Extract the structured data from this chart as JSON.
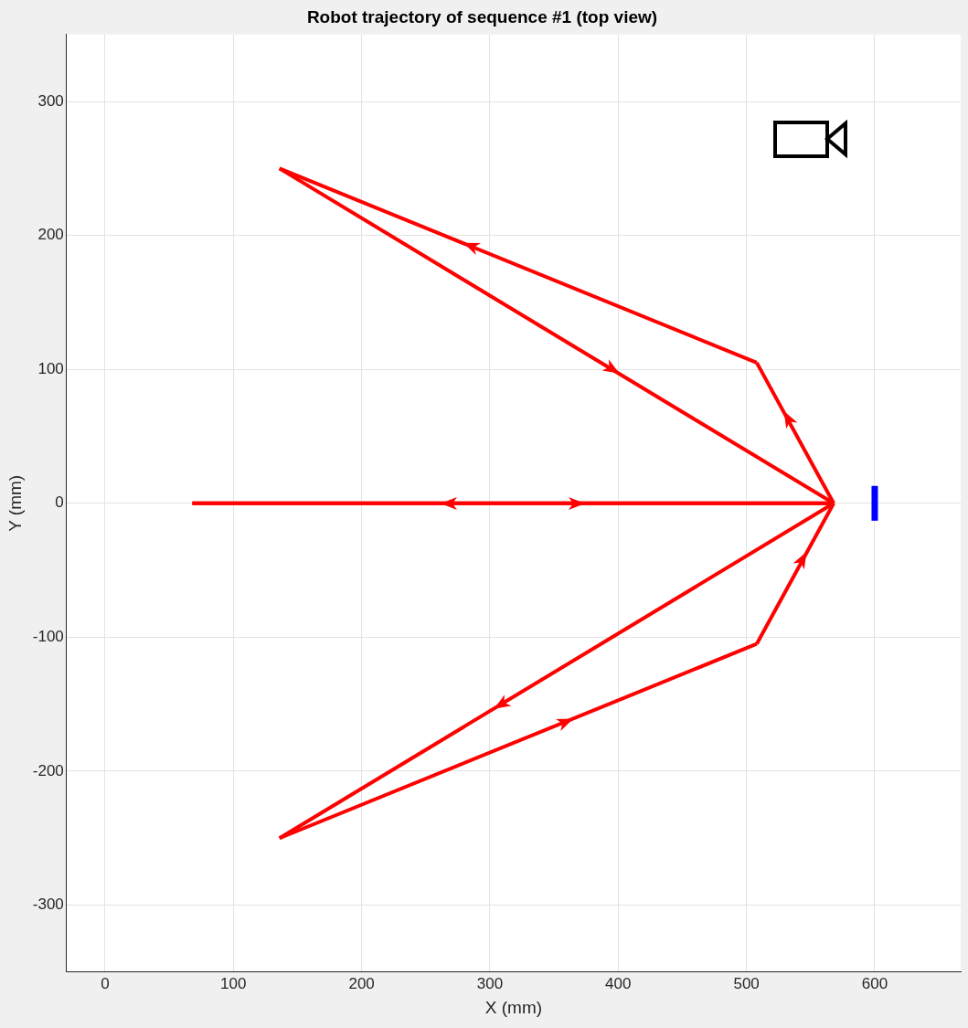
{
  "chart_data": {
    "type": "line",
    "title": "Robot trajectory of sequence #1 (top view)",
    "xlabel": "X (mm)",
    "ylabel": "Y (mm)",
    "xlim": [
      -30,
      667
    ],
    "ylim": [
      -350,
      350
    ],
    "xticks": [
      0,
      100,
      200,
      300,
      400,
      500,
      600
    ],
    "yticks": [
      -300,
      -200,
      -100,
      0,
      100,
      200,
      300
    ],
    "grid": true,
    "marker": "none",
    "line_style": "solid",
    "series": [
      {
        "color": "#ff0000",
        "x": [
          68,
          568
        ],
        "values": [
          0,
          0
        ]
      },
      {
        "color": "#ff0000",
        "x": [
          568,
          508
        ],
        "values": [
          0,
          105
        ]
      },
      {
        "color": "#ff0000",
        "x": [
          508,
          136
        ],
        "values": [
          105,
          250
        ]
      },
      {
        "color": "#ff0000",
        "x": [
          136,
          568
        ],
        "values": [
          250,
          0
        ]
      },
      {
        "color": "#ff0000",
        "x": [
          568,
          136
        ],
        "values": [
          0,
          -250
        ]
      },
      {
        "color": "#ff0000",
        "x": [
          136,
          508
        ],
        "values": [
          -250,
          -105
        ]
      },
      {
        "color": "#ff0000",
        "x": [
          508,
          568
        ],
        "values": [
          -105,
          0
        ]
      },
      {
        "color": "#ff0000",
        "x": [
          568,
          68
        ],
        "values": [
          0,
          0
        ]
      },
      {
        "color": "#0000ff",
        "x": [
          600,
          600
        ],
        "values": [
          -13,
          13
        ]
      }
    ]
  }
}
